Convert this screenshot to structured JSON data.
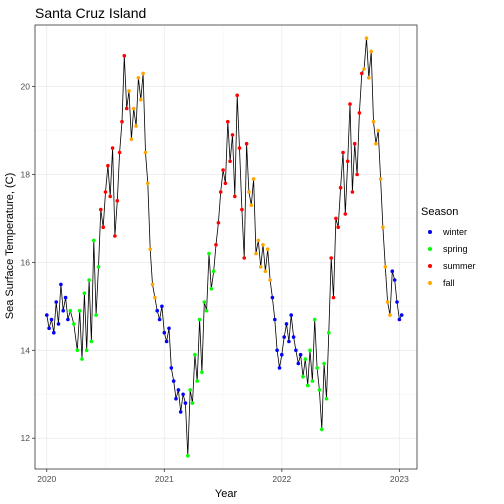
{
  "chart_data": {
    "type": "line",
    "title": "Santa Cruz Island",
    "xlabel": "Year",
    "ylabel": "Sea Surface Temperature, (C)",
    "xlim": [
      2019.9,
      2023.15
    ],
    "ylim": [
      11.3,
      21.4
    ],
    "x_ticks": [
      2020,
      2021,
      2022,
      2023
    ],
    "y_ticks": [
      12,
      14,
      16,
      18,
      20
    ],
    "grid": true,
    "line_color": "#000000",
    "legend": {
      "title": "Season",
      "position": "right",
      "entries": [
        {
          "name": "winter",
          "color": "#0000ff"
        },
        {
          "name": "spring",
          "color": "#00ff00"
        },
        {
          "name": "summer",
          "color": "#ff0000"
        },
        {
          "name": "fall",
          "color": "#ffa500"
        }
      ]
    },
    "series": [
      {
        "name": "winter",
        "color": "#0000ff",
        "points": [
          [
            2020.0,
            14.8
          ],
          [
            2020.02,
            14.5
          ],
          [
            2020.04,
            14.7
          ],
          [
            2020.06,
            14.4
          ],
          [
            2020.08,
            15.1
          ],
          [
            2020.1,
            14.6
          ],
          [
            2020.12,
            15.5
          ],
          [
            2020.14,
            14.9
          ],
          [
            2020.16,
            15.2
          ],
          [
            2020.18,
            14.7
          ]
        ]
      },
      {
        "name": "spring",
        "color": "#00ff00",
        "points": [
          [
            2020.2,
            14.9
          ],
          [
            2020.23,
            14.6
          ],
          [
            2020.26,
            14.0
          ],
          [
            2020.28,
            14.9
          ],
          [
            2020.3,
            13.8
          ],
          [
            2020.32,
            15.3
          ],
          [
            2020.34,
            14.0
          ],
          [
            2020.36,
            15.6
          ],
          [
            2020.38,
            14.2
          ],
          [
            2020.4,
            16.5
          ],
          [
            2020.42,
            14.8
          ],
          [
            2020.44,
            15.9
          ]
        ]
      },
      {
        "name": "summer",
        "color": "#ff0000",
        "points": [
          [
            2020.46,
            17.2
          ],
          [
            2020.48,
            16.8
          ],
          [
            2020.5,
            17.6
          ],
          [
            2020.52,
            18.2
          ],
          [
            2020.54,
            17.5
          ],
          [
            2020.56,
            18.6
          ],
          [
            2020.58,
            16.6
          ],
          [
            2020.6,
            17.4
          ],
          [
            2020.62,
            18.5
          ],
          [
            2020.64,
            19.2
          ],
          [
            2020.66,
            20.7
          ],
          [
            2020.68,
            19.5
          ]
        ]
      },
      {
        "name": "fall",
        "color": "#ffa500",
        "points": [
          [
            2020.7,
            19.9
          ],
          [
            2020.72,
            18.8
          ],
          [
            2020.74,
            19.5
          ],
          [
            2020.76,
            19.1
          ],
          [
            2020.78,
            20.2
          ],
          [
            2020.8,
            19.7
          ],
          [
            2020.82,
            20.3
          ],
          [
            2020.84,
            18.5
          ],
          [
            2020.86,
            17.8
          ],
          [
            2020.88,
            16.3
          ],
          [
            2020.9,
            15.5
          ],
          [
            2020.92,
            15.2
          ]
        ]
      },
      {
        "name": "winter",
        "color": "#0000ff",
        "points": [
          [
            2020.94,
            14.9
          ],
          [
            2020.96,
            14.7
          ],
          [
            2020.98,
            15.0
          ],
          [
            2021.0,
            14.4
          ],
          [
            2021.02,
            14.2
          ],
          [
            2021.04,
            14.5
          ],
          [
            2021.06,
            13.6
          ],
          [
            2021.08,
            13.3
          ],
          [
            2021.1,
            12.9
          ],
          [
            2021.12,
            13.1
          ],
          [
            2021.14,
            12.6
          ],
          [
            2021.16,
            13.0
          ],
          [
            2021.18,
            12.8
          ]
        ]
      },
      {
        "name": "spring",
        "color": "#00ff00",
        "points": [
          [
            2021.2,
            11.6
          ],
          [
            2021.22,
            13.1
          ],
          [
            2021.24,
            12.8
          ],
          [
            2021.26,
            13.9
          ],
          [
            2021.28,
            13.3
          ],
          [
            2021.3,
            14.7
          ],
          [
            2021.32,
            13.5
          ],
          [
            2021.34,
            15.1
          ],
          [
            2021.36,
            14.9
          ],
          [
            2021.38,
            16.2
          ],
          [
            2021.4,
            15.4
          ],
          [
            2021.42,
            15.8
          ]
        ]
      },
      {
        "name": "summer",
        "color": "#ff0000",
        "points": [
          [
            2021.44,
            16.4
          ],
          [
            2021.46,
            16.9
          ],
          [
            2021.48,
            17.6
          ],
          [
            2021.5,
            18.1
          ],
          [
            2021.52,
            17.8
          ],
          [
            2021.54,
            19.2
          ],
          [
            2021.56,
            18.3
          ],
          [
            2021.58,
            18.9
          ],
          [
            2021.6,
            17.5
          ],
          [
            2021.62,
            19.8
          ],
          [
            2021.64,
            18.6
          ],
          [
            2021.66,
            17.2
          ],
          [
            2021.68,
            16.1
          ],
          [
            2021.7,
            18.7
          ]
        ]
      },
      {
        "name": "fall",
        "color": "#ffa500",
        "points": [
          [
            2021.72,
            17.6
          ],
          [
            2021.74,
            17.3
          ],
          [
            2021.76,
            17.9
          ],
          [
            2021.78,
            16.2
          ],
          [
            2021.8,
            16.5
          ],
          [
            2021.82,
            15.9
          ],
          [
            2021.84,
            16.4
          ],
          [
            2021.86,
            15.8
          ],
          [
            2021.88,
            16.3
          ],
          [
            2021.9,
            15.6
          ]
        ]
      },
      {
        "name": "winter",
        "color": "#0000ff",
        "points": [
          [
            2021.92,
            15.2
          ],
          [
            2021.94,
            14.7
          ],
          [
            2021.96,
            14.0
          ],
          [
            2021.98,
            13.6
          ],
          [
            2022.0,
            13.9
          ],
          [
            2022.02,
            14.3
          ],
          [
            2022.04,
            14.6
          ],
          [
            2022.06,
            14.2
          ],
          [
            2022.08,
            14.8
          ],
          [
            2022.1,
            14.3
          ],
          [
            2022.12,
            14.0
          ],
          [
            2022.14,
            13.7
          ],
          [
            2022.16,
            13.9
          ]
        ]
      },
      {
        "name": "spring",
        "color": "#00ff00",
        "points": [
          [
            2022.18,
            13.4
          ],
          [
            2022.2,
            13.8
          ],
          [
            2022.22,
            13.2
          ],
          [
            2022.24,
            14.0
          ],
          [
            2022.26,
            13.3
          ],
          [
            2022.28,
            14.7
          ],
          [
            2022.3,
            13.6
          ],
          [
            2022.32,
            13.1
          ],
          [
            2022.34,
            12.2
          ],
          [
            2022.36,
            13.7
          ],
          [
            2022.38,
            12.9
          ],
          [
            2022.4,
            14.4
          ]
        ]
      },
      {
        "name": "summer",
        "color": "#ff0000",
        "points": [
          [
            2022.42,
            16.1
          ],
          [
            2022.44,
            15.2
          ],
          [
            2022.46,
            17.0
          ],
          [
            2022.48,
            16.8
          ],
          [
            2022.5,
            17.7
          ],
          [
            2022.52,
            18.5
          ],
          [
            2022.54,
            17.1
          ],
          [
            2022.56,
            18.3
          ],
          [
            2022.58,
            19.6
          ],
          [
            2022.6,
            17.6
          ],
          [
            2022.62,
            18.7
          ],
          [
            2022.64,
            18.0
          ],
          [
            2022.66,
            19.4
          ],
          [
            2022.68,
            20.3
          ]
        ]
      },
      {
        "name": "fall",
        "color": "#ffa500",
        "points": [
          [
            2022.7,
            20.4
          ],
          [
            2022.72,
            21.1
          ],
          [
            2022.74,
            20.2
          ],
          [
            2022.76,
            20.8
          ],
          [
            2022.78,
            19.2
          ],
          [
            2022.8,
            18.7
          ],
          [
            2022.82,
            19.0
          ],
          [
            2022.84,
            17.9
          ],
          [
            2022.86,
            16.8
          ],
          [
            2022.88,
            15.9
          ],
          [
            2022.9,
            15.1
          ],
          [
            2022.92,
            14.8
          ]
        ]
      },
      {
        "name": "winter",
        "color": "#0000ff",
        "points": [
          [
            2022.94,
            15.8
          ],
          [
            2022.96,
            15.6
          ],
          [
            2022.98,
            15.1
          ],
          [
            2023.0,
            14.7
          ],
          [
            2023.02,
            14.8
          ]
        ]
      }
    ]
  }
}
